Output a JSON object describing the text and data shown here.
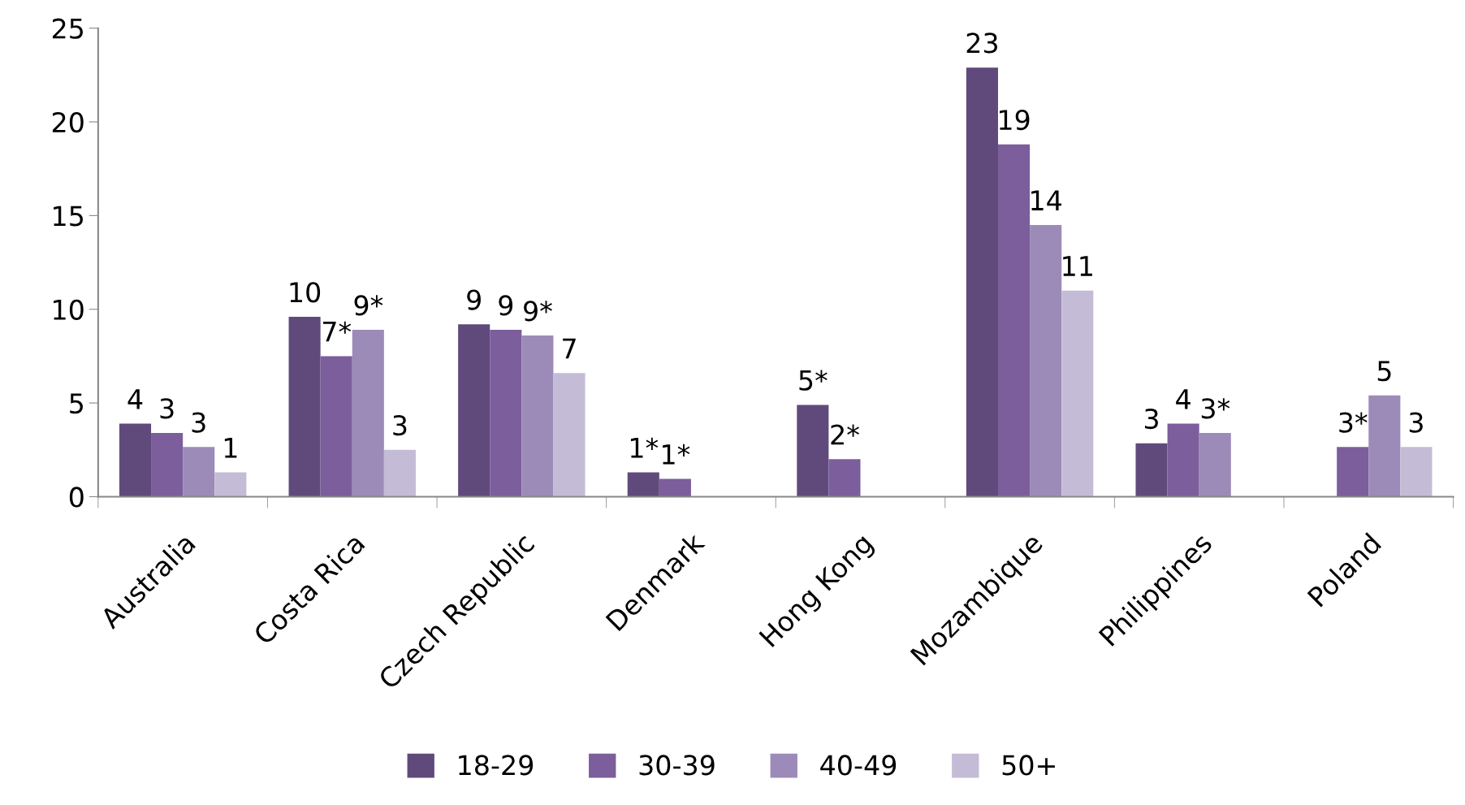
{
  "chart_data": {
    "type": "bar",
    "categories": [
      "Australia",
      "Costa Rica",
      "Czech Republic",
      "Denmark",
      "Hong Kong",
      "Mozambique",
      "Philippines",
      "Poland"
    ],
    "series": [
      {
        "name": "18-29",
        "color": "#604a7b",
        "values": [
          3.9,
          9.6,
          9.2,
          1.3,
          4.9,
          22.9,
          2.85,
          null
        ],
        "value_labels": [
          "4",
          "10",
          "9",
          "1*",
          "5*",
          "23",
          "3",
          null
        ]
      },
      {
        "name": "30-39",
        "color": "#7b5e9b",
        "values": [
          3.4,
          7.5,
          8.9,
          0.95,
          2.0,
          18.8,
          3.9,
          2.65
        ],
        "value_labels": [
          "3",
          "7*",
          "9",
          "1*",
          "2*",
          "19",
          "4",
          "3*"
        ]
      },
      {
        "name": "40-49",
        "color": "#9c8bb8",
        "values": [
          2.65,
          8.9,
          8.6,
          null,
          null,
          14.5,
          3.4,
          5.4
        ],
        "value_labels": [
          "3",
          "9*",
          "9*",
          null,
          null,
          "14",
          "3*",
          "5"
        ]
      },
      {
        "name": "50+",
        "color": "#c4bcd6",
        "values": [
          1.3,
          2.5,
          6.6,
          null,
          null,
          11.0,
          null,
          2.65
        ],
        "value_labels": [
          "1",
          "3",
          "7",
          null,
          null,
          "11",
          null,
          "3"
        ]
      }
    ],
    "ylim": [
      0,
      25
    ],
    "yticks": [
      0,
      5,
      10,
      15,
      20,
      25
    ],
    "grid": false,
    "legend": "bottom"
  }
}
